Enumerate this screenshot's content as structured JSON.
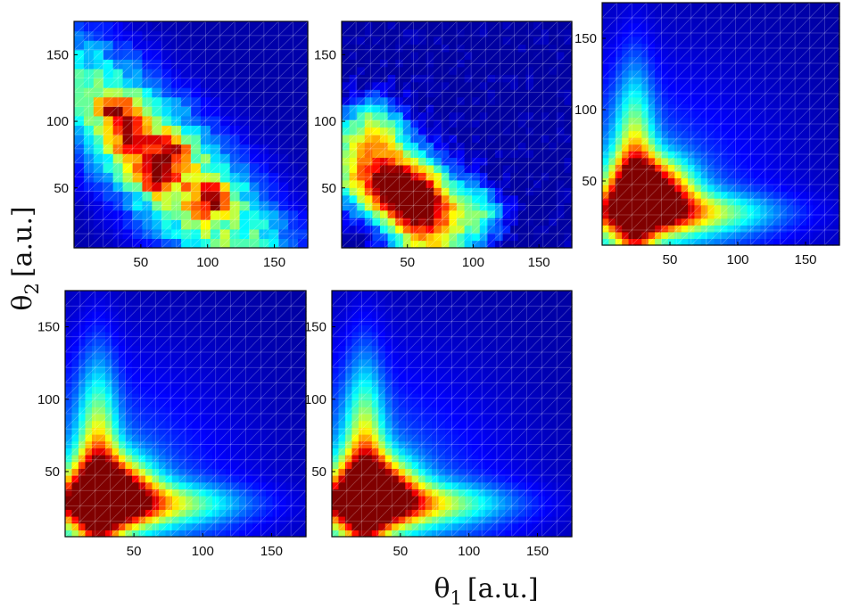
{
  "figure": {
    "xlabel": {
      "symbol": "θ",
      "subscript": "1",
      "unit": "[a.u.]"
    },
    "ylabel": {
      "symbol": "θ",
      "subscript": "2",
      "unit": "[a.u.]"
    }
  },
  "colormap": [
    "#00008f",
    "#0000ff",
    "#0080ff",
    "#00ffff",
    "#80ff80",
    "#ffff00",
    "#ff8000",
    "#ff0000",
    "#800000"
  ],
  "chart_data": [
    {
      "type": "heatmap",
      "xlim": [
        0,
        175
      ],
      "ylim": [
        5,
        175
      ],
      "xticks": [
        50,
        100,
        150
      ],
      "yticks": [
        50,
        100,
        150
      ],
      "xtick_labels": [
        "50",
        "100",
        "150"
      ],
      "ytick_labels": [
        "50",
        "100",
        "150"
      ],
      "grid": true,
      "density": {
        "style": "noisy",
        "peaks": [
          [
            32,
            108
          ],
          [
            72,
            78
          ],
          [
            103,
            42
          ],
          [
            45,
            85
          ],
          [
            60,
            60
          ]
        ]
      }
    },
    {
      "type": "heatmap",
      "xlim": [
        0,
        175
      ],
      "ylim": [
        5,
        175
      ],
      "xticks": [
        50,
        100,
        150
      ],
      "yticks": [
        50,
        100,
        150
      ],
      "xtick_labels": [
        "50",
        "100",
        "150"
      ],
      "ytick_labels": [
        "50",
        "100",
        "150"
      ],
      "grid": true,
      "density": {
        "style": "medium",
        "peaks": [
          [
            35,
            48
          ],
          [
            25,
            100
          ],
          [
            105,
            32
          ],
          [
            60,
            40
          ]
        ]
      }
    },
    {
      "type": "heatmap",
      "xlim": [
        0,
        175
      ],
      "ylim": [
        5,
        175
      ],
      "xticks": [
        50,
        100,
        150
      ],
      "yticks": [
        50,
        100,
        150
      ],
      "xtick_labels": [
        "50",
        "100",
        "150"
      ],
      "ytick_labels": [
        "50",
        "100",
        "150"
      ],
      "grid": true,
      "density": {
        "style": "smooth",
        "peaks": [
          [
            35,
            42
          ]
        ]
      }
    },
    {
      "type": "heatmap",
      "xlim": [
        0,
        175
      ],
      "ylim": [
        5,
        175
      ],
      "xticks": [
        50,
        100,
        150
      ],
      "yticks": [
        50,
        100,
        150
      ],
      "xtick_labels": [
        "50",
        "100",
        "150"
      ],
      "ytick_labels": [
        "50",
        "100",
        "150"
      ],
      "grid": true,
      "density": {
        "style": "smooth",
        "peaks": [
          [
            32,
            36
          ]
        ]
      }
    },
    {
      "type": "heatmap",
      "xlim": [
        0,
        175
      ],
      "ylim": [
        5,
        175
      ],
      "xticks": [
        50,
        100,
        150
      ],
      "yticks": [
        50,
        100,
        150
      ],
      "xtick_labels": [
        "50",
        "100",
        "150"
      ],
      "ytick_labels": [
        "50",
        "100",
        "150"
      ],
      "grid": true,
      "density": {
        "style": "smooth",
        "peaks": [
          [
            30,
            36
          ]
        ]
      }
    }
  ]
}
